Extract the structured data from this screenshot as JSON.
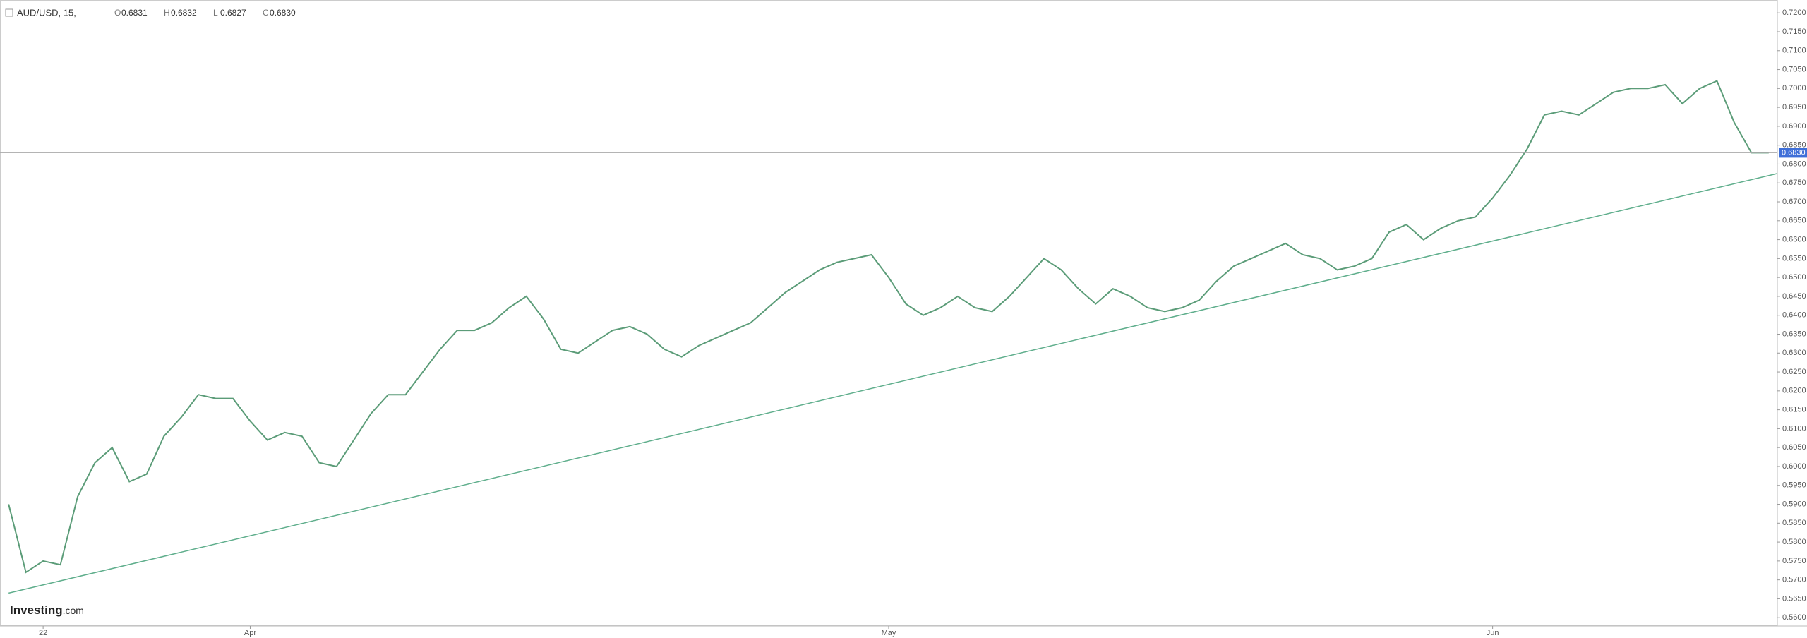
{
  "header": {
    "symbol": "AUD/USD, 15,",
    "ohlc": [
      {
        "key": "O",
        "value": "0.6831"
      },
      {
        "key": "H",
        "value": "0.6832"
      },
      {
        "key": "L",
        "value": "0.6827"
      },
      {
        "key": "C",
        "value": "0.6830"
      }
    ]
  },
  "logo": {
    "brand": "Investing",
    "suffix": ".com"
  },
  "chart_data": {
    "type": "line",
    "color": "#5b9c78",
    "categories": [
      null,
      null,
      "22",
      null,
      null,
      null,
      null,
      null,
      null,
      null,
      null,
      null,
      null,
      null,
      "Apr",
      null,
      null,
      null,
      null,
      null,
      null,
      null,
      null,
      null,
      null,
      null,
      null,
      null,
      null,
      null,
      null,
      null,
      null,
      null,
      null,
      null,
      null,
      null,
      null,
      null,
      null,
      null,
      null,
      null,
      null,
      null,
      null,
      null,
      null,
      null,
      null,
      "May",
      null,
      null,
      null,
      null,
      null,
      null,
      null,
      null,
      null,
      null,
      null,
      null,
      null,
      null,
      null,
      null,
      null,
      null,
      null,
      null,
      null,
      null,
      null,
      null,
      null,
      null,
      null,
      null,
      null,
      null,
      null,
      null,
      null,
      null,
      "Jun",
      null,
      null,
      null,
      null,
      null,
      null,
      null,
      null,
      null,
      null,
      null,
      null,
      null,
      null,
      null,
      null
    ],
    "series": [
      {
        "name": "AUD/USD",
        "color": "#5b9c78",
        "values": [
          0.59,
          0.572,
          0.575,
          0.574,
          0.592,
          0.601,
          0.605,
          0.596,
          0.598,
          0.608,
          0.613,
          0.619,
          0.618,
          0.618,
          0.612,
          0.607,
          0.609,
          0.608,
          0.601,
          0.6,
          0.607,
          0.614,
          0.619,
          0.619,
          0.625,
          0.631,
          0.636,
          0.636,
          0.638,
          0.642,
          0.645,
          0.639,
          0.631,
          0.63,
          0.633,
          0.636,
          0.637,
          0.635,
          0.631,
          0.629,
          0.632,
          0.634,
          0.636,
          0.638,
          0.642,
          0.646,
          0.649,
          0.652,
          0.654,
          0.655,
          0.656,
          0.65,
          0.643,
          0.64,
          0.642,
          0.645,
          0.642,
          0.641,
          0.645,
          0.65,
          0.655,
          0.652,
          0.647,
          0.643,
          0.647,
          0.645,
          0.642,
          0.641,
          0.642,
          0.644,
          0.649,
          0.653,
          0.655,
          0.657,
          0.659,
          0.656,
          0.655,
          0.652,
          0.653,
          0.655,
          0.662,
          0.664,
          0.66,
          0.663,
          0.665,
          0.666,
          0.671,
          0.677,
          0.684,
          0.693,
          0.694,
          0.693,
          0.696,
          0.699,
          0.7,
          0.7,
          0.701,
          0.696,
          0.7,
          0.702,
          0.691,
          0.683,
          0.683
        ]
      }
    ],
    "trend_line": [
      0.5665,
      0.6775
    ],
    "last_price": {
      "value": 0.683,
      "label": "0.6830"
    },
    "ylim": [
      0.5578,
      0.7234
    ],
    "yticks": [
      {
        "value": 0.56,
        "label": "0.5600"
      },
      {
        "value": 0.565,
        "label": "0.5650"
      },
      {
        "value": 0.57,
        "label": "0.5700"
      },
      {
        "value": 0.575,
        "label": "0.5750"
      },
      {
        "value": 0.58,
        "label": "0.5800"
      },
      {
        "value": 0.585,
        "label": "0.5850"
      },
      {
        "value": 0.59,
        "label": "0.5900"
      },
      {
        "value": 0.595,
        "label": "0.5950"
      },
      {
        "value": 0.6,
        "label": "0.6000"
      },
      {
        "value": 0.605,
        "label": "0.6050"
      },
      {
        "value": 0.61,
        "label": "0.6100"
      },
      {
        "value": 0.615,
        "label": "0.6150"
      },
      {
        "value": 0.62,
        "label": "0.6200"
      },
      {
        "value": 0.625,
        "label": "0.6250"
      },
      {
        "value": 0.63,
        "label": "0.6300"
      },
      {
        "value": 0.635,
        "label": "0.6350"
      },
      {
        "value": 0.64,
        "label": "0.6400"
      },
      {
        "value": 0.645,
        "label": "0.6450"
      },
      {
        "value": 0.65,
        "label": "0.6500"
      },
      {
        "value": 0.655,
        "label": "0.6550"
      },
      {
        "value": 0.66,
        "label": "0.6600"
      },
      {
        "value": 0.665,
        "label": "0.6650"
      },
      {
        "value": 0.67,
        "label": "0.6700"
      },
      {
        "value": 0.675,
        "label": "0.6750"
      },
      {
        "value": 0.68,
        "label": "0.6800"
      },
      {
        "value": 0.685,
        "label": "0.6850"
      },
      {
        "value": 0.69,
        "label": "0.6900"
      },
      {
        "value": 0.695,
        "label": "0.6950"
      },
      {
        "value": 0.7,
        "label": "0.7000"
      },
      {
        "value": 0.705,
        "label": "0.7050"
      },
      {
        "value": 0.71,
        "label": "0.7100"
      },
      {
        "value": 0.715,
        "label": "0.7150"
      },
      {
        "value": 0.72,
        "label": "0.7200"
      }
    ]
  }
}
